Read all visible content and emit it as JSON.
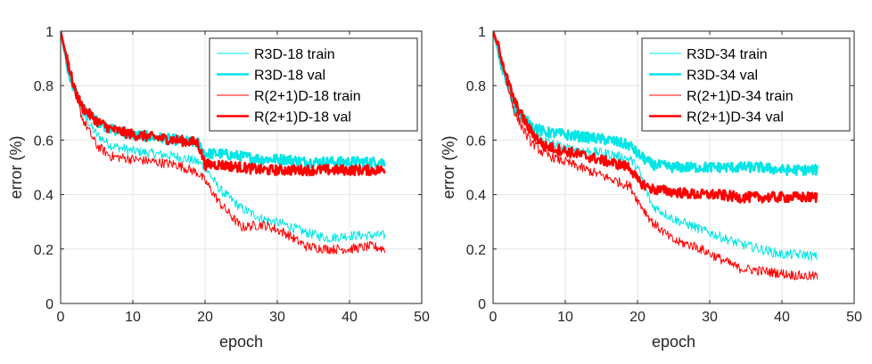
{
  "chart_data": [
    {
      "type": "line",
      "xlabel": "epoch",
      "ylabel": "error (%)",
      "xlim": [
        0,
        50
      ],
      "ylim": [
        0,
        1
      ],
      "xticks": [
        "0",
        "10",
        "20",
        "30",
        "40",
        "50"
      ],
      "yticks": [
        "0",
        "0.2",
        "0.4",
        "0.6",
        "0.8",
        "1"
      ],
      "grid": true,
      "legend_position": "top-right",
      "series": [
        {
          "name": "R3D-18 train",
          "color": "#00e5e5",
          "style": "thin",
          "x": [
            0,
            1,
            2,
            3,
            5,
            7,
            10,
            13,
            16,
            19,
            20,
            22,
            25,
            28,
            31,
            34,
            37,
            40,
            43,
            45
          ],
          "y": [
            1.0,
            0.88,
            0.78,
            0.7,
            0.62,
            0.58,
            0.56,
            0.55,
            0.54,
            0.52,
            0.5,
            0.42,
            0.35,
            0.31,
            0.29,
            0.26,
            0.24,
            0.25,
            0.25,
            0.25
          ]
        },
        {
          "name": "R3D-18 val",
          "color": "#00e5e5",
          "style": "thick",
          "x": [
            0,
            1,
            2,
            3,
            5,
            7,
            10,
            13,
            16,
            19,
            20,
            22,
            25,
            28,
            31,
            34,
            37,
            40,
            43,
            45
          ],
          "y": [
            1.0,
            0.86,
            0.78,
            0.72,
            0.67,
            0.64,
            0.62,
            0.61,
            0.6,
            0.59,
            0.55,
            0.55,
            0.54,
            0.53,
            0.53,
            0.52,
            0.52,
            0.52,
            0.52,
            0.52
          ]
        },
        {
          "name": "R(2+1)D-18 train",
          "color": "#ff0000",
          "style": "thin",
          "x": [
            0,
            1,
            2,
            3,
            5,
            7,
            10,
            13,
            16,
            19,
            20,
            22,
            25,
            28,
            31,
            34,
            37,
            40,
            43,
            45
          ],
          "y": [
            1.0,
            0.9,
            0.78,
            0.68,
            0.58,
            0.54,
            0.53,
            0.52,
            0.51,
            0.48,
            0.45,
            0.37,
            0.28,
            0.29,
            0.26,
            0.21,
            0.2,
            0.2,
            0.21,
            0.2
          ]
        },
        {
          "name": "R(2+1)D-18 val",
          "color": "#ff0000",
          "style": "thick",
          "x": [
            0,
            1,
            2,
            3,
            5,
            7,
            10,
            13,
            16,
            19,
            20,
            22,
            25,
            28,
            31,
            34,
            37,
            40,
            43,
            45
          ],
          "y": [
            1.0,
            0.88,
            0.78,
            0.72,
            0.67,
            0.64,
            0.62,
            0.61,
            0.6,
            0.59,
            0.51,
            0.51,
            0.5,
            0.49,
            0.49,
            0.49,
            0.49,
            0.49,
            0.49,
            0.49
          ]
        }
      ]
    },
    {
      "type": "line",
      "xlabel": "epoch",
      "ylabel": "error (%)",
      "xlim": [
        0,
        50
      ],
      "ylim": [
        0,
        1
      ],
      "xticks": [
        "0",
        "10",
        "20",
        "30",
        "40",
        "50"
      ],
      "yticks": [
        "0",
        "0.2",
        "0.4",
        "0.6",
        "0.8",
        "1"
      ],
      "grid": true,
      "legend_position": "top-right",
      "series": [
        {
          "name": "R3D-34 train",
          "color": "#00e5e5",
          "style": "thin",
          "x": [
            0,
            1,
            2,
            3,
            5,
            7,
            10,
            13,
            16,
            19,
            20,
            22,
            25,
            28,
            31,
            34,
            37,
            40,
            43,
            45
          ],
          "y": [
            1.0,
            0.88,
            0.8,
            0.72,
            0.64,
            0.6,
            0.57,
            0.56,
            0.55,
            0.53,
            0.5,
            0.36,
            0.31,
            0.28,
            0.25,
            0.22,
            0.2,
            0.18,
            0.18,
            0.17
          ]
        },
        {
          "name": "R3D-34 val",
          "color": "#00e5e5",
          "style": "thick",
          "x": [
            0,
            1,
            2,
            3,
            5,
            7,
            10,
            13,
            16,
            19,
            20,
            22,
            25,
            28,
            31,
            34,
            37,
            40,
            43,
            45
          ],
          "y": [
            1.0,
            0.9,
            0.8,
            0.72,
            0.66,
            0.63,
            0.62,
            0.61,
            0.6,
            0.58,
            0.55,
            0.51,
            0.5,
            0.5,
            0.5,
            0.5,
            0.5,
            0.49,
            0.49,
            0.49
          ]
        },
        {
          "name": "R(2+1)D-34 train",
          "color": "#ff0000",
          "style": "thin",
          "x": [
            0,
            1,
            2,
            3,
            5,
            7,
            10,
            13,
            16,
            19,
            20,
            22,
            25,
            28,
            31,
            34,
            37,
            40,
            43,
            45
          ],
          "y": [
            1.0,
            0.92,
            0.8,
            0.7,
            0.6,
            0.55,
            0.52,
            0.49,
            0.46,
            0.43,
            0.38,
            0.3,
            0.23,
            0.21,
            0.17,
            0.13,
            0.12,
            0.11,
            0.1,
            0.1
          ]
        },
        {
          "name": "R(2+1)D-34 val",
          "color": "#ff0000",
          "style": "thick",
          "x": [
            0,
            1,
            2,
            3,
            5,
            7,
            10,
            13,
            16,
            19,
            20,
            22,
            25,
            28,
            31,
            34,
            37,
            40,
            43,
            45
          ],
          "y": [
            1.0,
            0.92,
            0.82,
            0.74,
            0.64,
            0.58,
            0.56,
            0.54,
            0.52,
            0.5,
            0.45,
            0.42,
            0.41,
            0.4,
            0.4,
            0.39,
            0.39,
            0.39,
            0.39,
            0.39
          ]
        }
      ]
    }
  ]
}
